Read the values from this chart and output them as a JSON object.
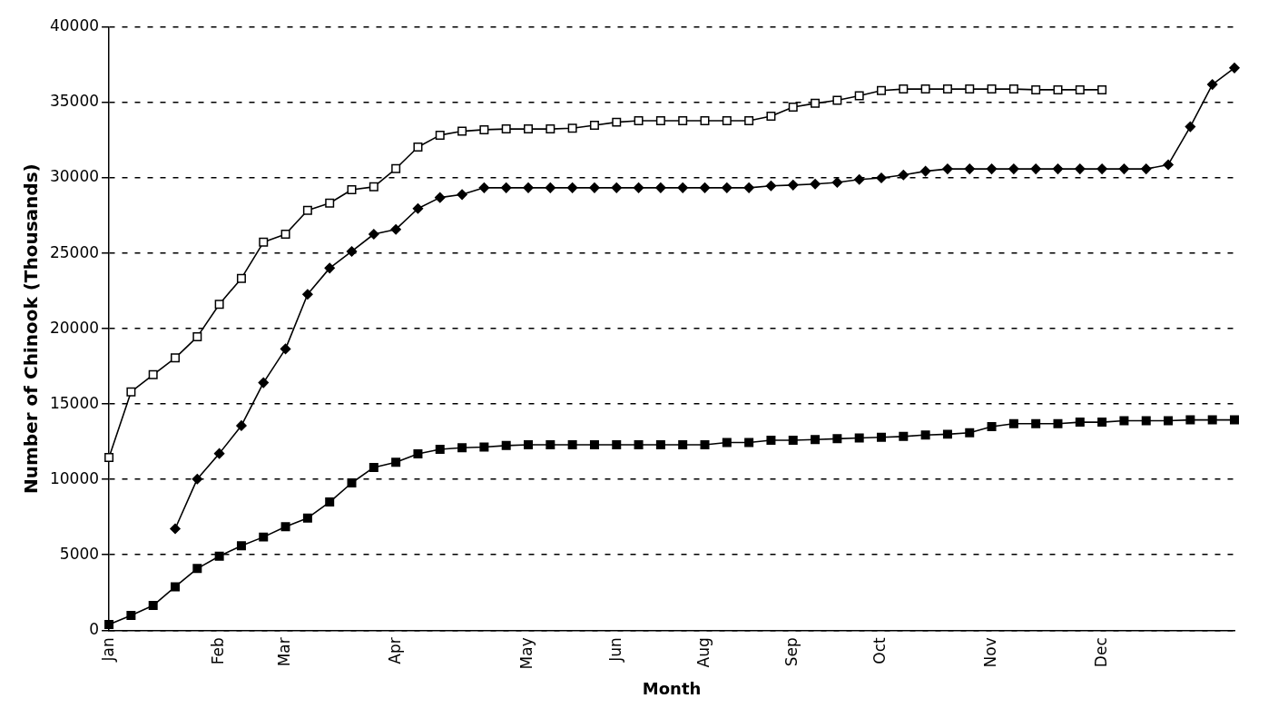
{
  "chart_data": {
    "type": "line",
    "xlabel": "Month",
    "ylabel": "Number of Chinook (Thousands)",
    "categories": [
      "Jan",
      null,
      null,
      null,
      null,
      "Feb",
      null,
      null,
      "Mar",
      null,
      null,
      null,
      null,
      "Apr",
      null,
      null,
      null,
      null,
      null,
      "May",
      null,
      null,
      null,
      "Jun",
      null,
      null,
      null,
      "Aug",
      null,
      null,
      null,
      "Sep",
      null,
      null,
      null,
      "Oct",
      null,
      null,
      null,
      null,
      "Nov",
      null,
      null,
      null,
      null,
      "Dec",
      null,
      null,
      null,
      null,
      null,
      null
    ],
    "ylim": [
      0,
      40000
    ],
    "yticks": [
      0,
      5000,
      10000,
      15000,
      20000,
      25000,
      30000,
      35000,
      40000
    ],
    "grid": "y",
    "line_style": "solid",
    "series": [
      {
        "color": "#000000",
        "marker": "square",
        "values": [
          370,
          980,
          1640,
          2880,
          4090,
          4910,
          5600,
          6180,
          6860,
          7440,
          8500,
          9770,
          10800,
          11140,
          11700,
          12000,
          12100,
          12150,
          12250,
          12300,
          12300,
          12300,
          12300,
          12300,
          12300,
          12300,
          12300,
          12300,
          12450,
          12450,
          12600,
          12600,
          12650,
          12700,
          12750,
          12800,
          12850,
          12950,
          13000,
          13100,
          13500,
          13700,
          13700,
          13700,
          13800,
          13800,
          13900,
          13900,
          13900,
          13950,
          13950,
          13950
        ]
      },
      {
        "color": "#000000",
        "marker": "square",
        "values": [
          11460,
          15810,
          16950,
          18060,
          19460,
          21620,
          23340,
          25740,
          26270,
          27850,
          28330,
          29220,
          29410,
          30620,
          32050,
          32840,
          33100,
          33200,
          33250,
          33250,
          33250,
          33300,
          33500,
          33700,
          33800,
          33800,
          33800,
          33800,
          33800,
          33800,
          34100,
          34700,
          34950,
          35150,
          35450,
          35800,
          35900,
          35900,
          35900,
          35900,
          35900,
          35900,
          35850,
          35850,
          35850,
          35850,
          null,
          null,
          null,
          null,
          null,
          null
        ]
      },
      {
        "color": "#000000",
        "marker": "diamond",
        "values": [
          null,
          null,
          null,
          6730,
          10030,
          11720,
          13570,
          16420,
          18660,
          22280,
          24020,
          25130,
          26270,
          26590,
          27970,
          28700,
          28900,
          29350,
          29350,
          29350,
          29350,
          29350,
          29350,
          29350,
          29350,
          29350,
          29350,
          29350,
          29350,
          29350,
          29480,
          29530,
          29600,
          29700,
          29900,
          30000,
          30200,
          30450,
          30600,
          30600,
          30600,
          30600,
          30600,
          30600,
          30600,
          30600,
          30600,
          30600,
          30880,
          33400,
          36200,
          37300
        ]
      }
    ]
  }
}
